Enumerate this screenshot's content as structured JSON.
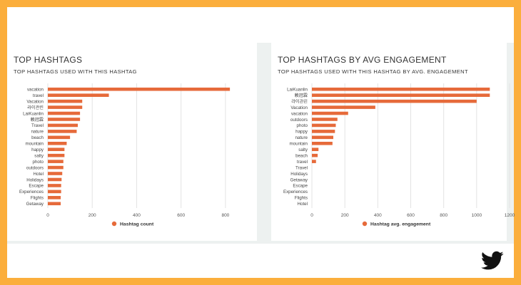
{
  "panels": [
    {
      "title": "TOP HASHTAGS",
      "subtitle": "TOP HASHTAGS USED WITH THIS HASHTAG"
    },
    {
      "title": "TOP HASHTAGS BY AVG ENGAGEMENT",
      "subtitle": "TOP HASHTAGS USED WITH THIS HASHTAG BY AVG. ENGAGEMENT"
    }
  ],
  "accent_color": "#E66A3A",
  "background_color": "#FBAE3C",
  "logo": "twitter-bird-icon",
  "chart_data": [
    {
      "type": "bar",
      "orientation": "horizontal",
      "categories": [
        "vacation",
        "travel",
        "Vacation",
        "라이관린",
        "LaiKuanlin",
        "赖冠霖",
        "Travel",
        "nature",
        "beach",
        "mountain",
        "happy",
        "salty",
        "photo",
        "outdoors",
        "Hotel",
        "Holidays",
        "Escape",
        "Experiences",
        "Flights",
        "Getaway"
      ],
      "series": [
        {
          "name": "Hashtag count",
          "values": [
            820,
            275,
            155,
            155,
            145,
            145,
            135,
            130,
            100,
            85,
            75,
            75,
            70,
            70,
            65,
            62,
            60,
            60,
            58,
            58
          ]
        }
      ],
      "xticks": [
        "0",
        "200",
        "400",
        "600",
        "800"
      ],
      "xlim": [
        0,
        900
      ],
      "grid": true,
      "legend": "bottom"
    },
    {
      "type": "bar",
      "orientation": "horizontal",
      "categories": [
        "LaiKuanlin",
        "赖冠霖",
        "라이관린",
        "Vacation",
        "vacation",
        "outdoors",
        "photo",
        "happy",
        "nature",
        "mountain",
        "salty",
        "beach",
        "travel",
        "Travel",
        "Holidays",
        "Getaway",
        "Escape",
        "Experiences",
        "Flights",
        "Hotel"
      ],
      "series": [
        {
          "name": "Hashtag avg. engagement",
          "values": [
            1080,
            1080,
            1000,
            385,
            220,
            155,
            145,
            140,
            130,
            125,
            40,
            35,
            25,
            0,
            0,
            0,
            0,
            0,
            0,
            0
          ]
        }
      ],
      "xticks": [
        "0",
        "200",
        "400",
        "600",
        "800",
        "1000",
        "1200"
      ],
      "xlim": [
        0,
        1200
      ],
      "grid": true,
      "legend": "bottom"
    }
  ]
}
